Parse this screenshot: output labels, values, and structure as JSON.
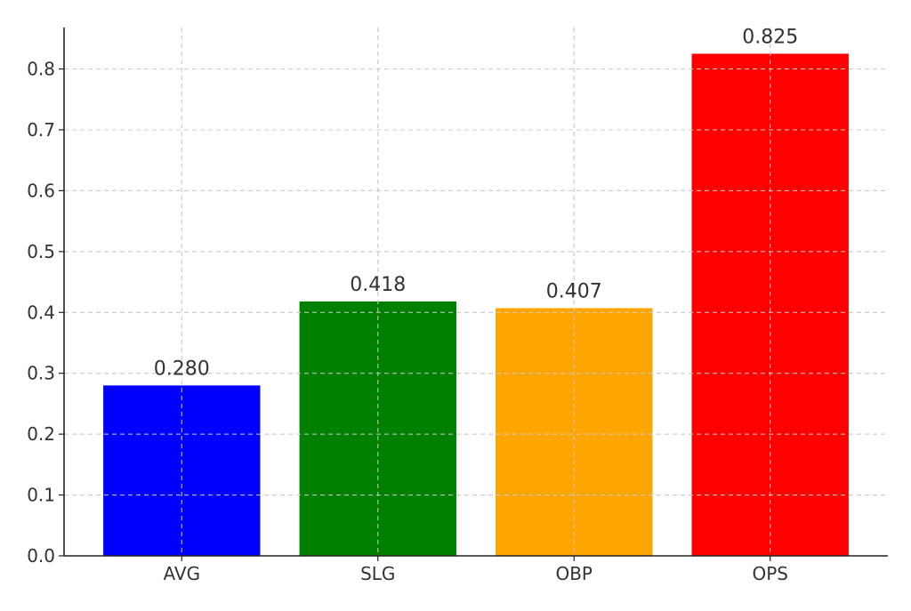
{
  "chart_data": {
    "type": "bar",
    "title": "",
    "xlabel": "",
    "ylabel": "",
    "categories": [
      "AVG",
      "SLG",
      "OBP",
      "OPS"
    ],
    "values": [
      0.28,
      0.418,
      0.407,
      0.825
    ],
    "data_labels": [
      "0.280",
      "0.418",
      "0.407",
      "0.825"
    ],
    "colors": [
      "#0000ff",
      "#008000",
      "#ffa500",
      "#ff0000"
    ],
    "ylim": [
      0,
      0.868
    ],
    "yticks": [
      0.0,
      0.1,
      0.2,
      0.3,
      0.4,
      0.5,
      0.6,
      0.7,
      0.8
    ],
    "ytick_labels": [
      "0.0",
      "0.1",
      "0.2",
      "0.3",
      "0.4",
      "0.5",
      "0.6",
      "0.7",
      "0.8"
    ],
    "grid": true,
    "legend": "none"
  }
}
